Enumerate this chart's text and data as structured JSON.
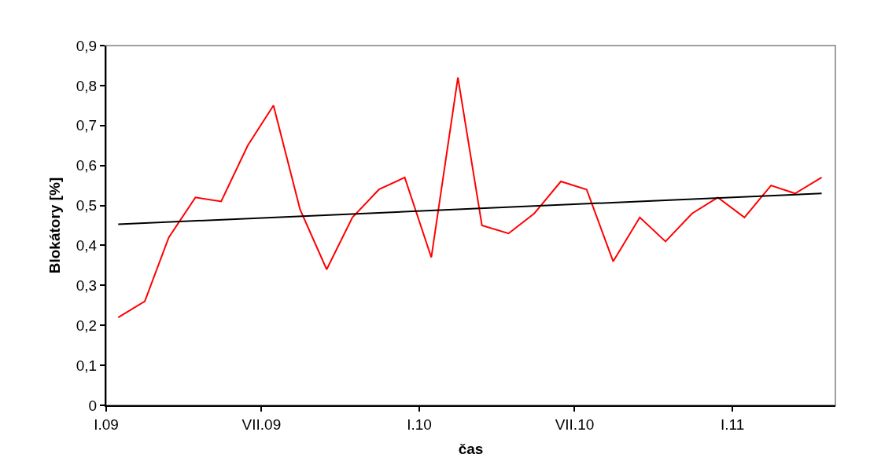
{
  "chart_data": {
    "type": "line",
    "xlabel": "čas",
    "ylabel": "Blokátory [%]",
    "x": [
      "2009-01-15",
      "2009-02-15",
      "2009-03-15",
      "2009-04-15",
      "2009-05-15",
      "2009-06-15",
      "2009-07-15",
      "2009-08-15",
      "2009-09-15",
      "2009-10-15",
      "2009-11-15",
      "2009-12-15",
      "2010-01-15",
      "2010-02-15",
      "2010-03-15",
      "2010-04-15",
      "2010-05-15",
      "2010-06-15",
      "2010-07-15",
      "2010-08-15",
      "2010-09-15",
      "2010-10-15",
      "2010-11-15",
      "2010-12-15",
      "2011-01-15",
      "2011-02-15",
      "2011-03-15",
      "2011-04-15"
    ],
    "series": [
      {
        "color": "#ff0000",
        "values": [
          0.22,
          0.26,
          0.42,
          0.52,
          0.51,
          0.65,
          0.75,
          0.49,
          0.34,
          0.47,
          0.54,
          0.57,
          0.37,
          0.82,
          0.45,
          0.43,
          0.48,
          0.56,
          0.54,
          0.36,
          0.47,
          0.41,
          0.48,
          0.52,
          0.47,
          0.55,
          0.53,
          0.57
        ]
      },
      {
        "color": "#000000",
        "x": [
          "2009-01-15",
          "2011-04-15"
        ],
        "values": [
          0.453,
          0.53
        ]
      }
    ],
    "xlim": [
      "2009-01-01",
      "2011-05-01"
    ],
    "xticks": [
      {
        "value": "2009-01-01",
        "label": "I.09"
      },
      {
        "value": "2009-07-01",
        "label": "VII.09"
      },
      {
        "value": "2010-01-01",
        "label": "I.10"
      },
      {
        "value": "2010-07-01",
        "label": "VII.10"
      },
      {
        "value": "2011-01-01",
        "label": "I.11"
      }
    ],
    "ylim": [
      0,
      0.9
    ],
    "yticks": [
      {
        "value": 0,
        "label": "0"
      },
      {
        "value": 0.1,
        "label": "0,1"
      },
      {
        "value": 0.2,
        "label": "0,2"
      },
      {
        "value": 0.3,
        "label": "0,3"
      },
      {
        "value": 0.4,
        "label": "0,4"
      },
      {
        "value": 0.5,
        "label": "0,5"
      },
      {
        "value": 0.6,
        "label": "0,6"
      },
      {
        "value": 0.7,
        "label": "0,7"
      },
      {
        "value": 0.8,
        "label": "0,8"
      },
      {
        "value": 0.9,
        "label": "0,9"
      }
    ],
    "grid": false,
    "marker": "none",
    "line_style": "solid"
  }
}
